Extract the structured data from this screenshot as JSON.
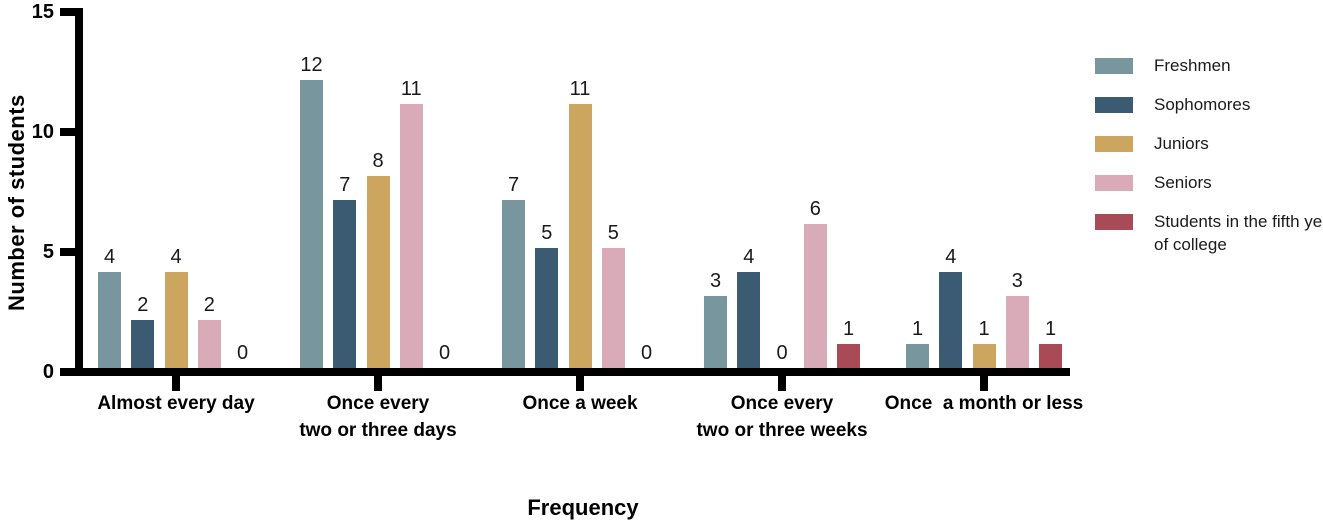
{
  "chart_data": {
    "type": "bar",
    "title": "",
    "xlabel": "Frequency",
    "ylabel": "Number of students",
    "categories": [
      "Almost every day",
      "Once every\ntwo or three days",
      "Once a week",
      "Once every\ntwo or three weeks",
      "Once  a month or less"
    ],
    "series": [
      {
        "name": "Freshmen",
        "color": "#78969D",
        "values": [
          4,
          12,
          7,
          3,
          1
        ]
      },
      {
        "name": "Sophomores",
        "color": "#3B5B72",
        "values": [
          2,
          7,
          5,
          4,
          4
        ]
      },
      {
        "name": "Juniors",
        "color": "#CCA55E",
        "values": [
          4,
          8,
          11,
          0,
          1
        ]
      },
      {
        "name": "Seniors",
        "color": "#D9AAB8",
        "values": [
          2,
          11,
          5,
          6,
          3
        ]
      },
      {
        "name": "Students in the fifth year of college",
        "color": "#A84B57",
        "values": [
          0,
          0,
          0,
          1,
          1
        ]
      }
    ],
    "y_ticks": [
      0,
      5,
      10,
      15
    ],
    "ylim": [
      0,
      15
    ],
    "grid": false,
    "legend_position": "right",
    "bar_value_labels": true,
    "axis_color": "#000000",
    "text_color": "#1A1A1A"
  }
}
